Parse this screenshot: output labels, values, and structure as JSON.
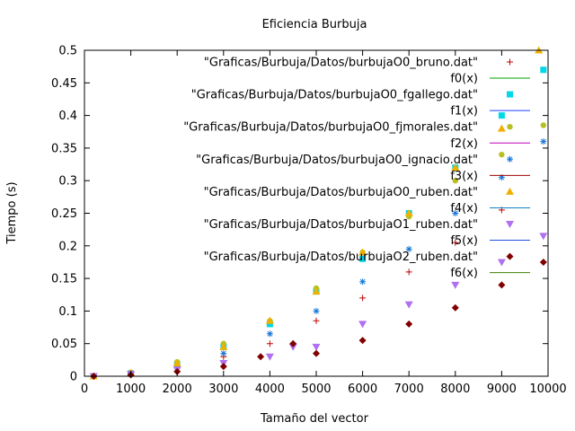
{
  "chart_data": {
    "type": "scatter",
    "title": "Eficiencia Burbuja",
    "xlabel": "Tamaño del vector",
    "ylabel": "Tiempo (s)",
    "xlim": [
      0,
      10000
    ],
    "ylim": [
      0,
      0.5
    ],
    "xticks": [
      "0",
      "1000",
      "2000",
      "3000",
      "4000",
      "5000",
      "6000",
      "7000",
      "8000",
      "9000",
      "10000"
    ],
    "yticks": [
      "0",
      "0.05",
      "0.1",
      "0.15",
      "0.2",
      "0.25",
      "0.3",
      "0.35",
      "0.4",
      "0.45",
      "0.5"
    ],
    "grid": false,
    "legend_position": "top-right",
    "series": [
      {
        "name": "\"Graficas/Burbuja/Datos/burbujaO0_bruno.dat\"",
        "kind": "points",
        "marker": "plus",
        "color": "#c00000",
        "x": [
          200,
          1000,
          2000,
          3000,
          4000,
          5000,
          6000,
          7000,
          8000,
          9000,
          9800
        ],
        "y": [
          0.0,
          0.005,
          0.013,
          0.03,
          0.05,
          0.085,
          0.12,
          0.16,
          0.205,
          0.255,
          0.5
        ]
      },
      {
        "name": "f0(x)",
        "kind": "line",
        "color": "#00a000",
        "x": [],
        "y": []
      },
      {
        "name": "\"Graficas/Burbuja/Datos/burbujaO0_fgallego.dat\"",
        "kind": "points",
        "marker": "square",
        "color": "#00d8e8",
        "x": [
          200,
          1000,
          2000,
          3000,
          4000,
          5000,
          6000,
          7000,
          8000,
          9000,
          9900
        ],
        "y": [
          0.0,
          0.004,
          0.018,
          0.045,
          0.08,
          0.13,
          0.18,
          0.25,
          0.32,
          0.4,
          0.47
        ]
      },
      {
        "name": "f1(x)",
        "kind": "line",
        "color": "#2040ff",
        "x": [],
        "y": []
      },
      {
        "name": "\"Graficas/Burbuja/Datos/burbujaO0_fjmorales.dat\"",
        "kind": "points",
        "marker": "circle",
        "color": "#b8c020",
        "x": [
          200,
          1000,
          2000,
          3000,
          4000,
          5000,
          6000,
          7000,
          8000,
          9000,
          9900
        ],
        "y": [
          0.0,
          0.006,
          0.022,
          0.05,
          0.085,
          0.135,
          0.19,
          0.245,
          0.3,
          0.34,
          0.385
        ]
      },
      {
        "name": "f2(x)",
        "kind": "line",
        "color": "#c000c0",
        "x": [],
        "y": []
      },
      {
        "name": "\"Graficas/Burbuja/Datos/burbujaO0_ignacio.dat\"",
        "kind": "points",
        "marker": "star",
        "color": "#1878d8",
        "x": [
          200,
          1000,
          2000,
          3000,
          4000,
          5000,
          6000,
          7000,
          8000,
          9000,
          9900
        ],
        "y": [
          0.0,
          0.005,
          0.016,
          0.035,
          0.065,
          0.1,
          0.145,
          0.195,
          0.25,
          0.305,
          0.36
        ]
      },
      {
        "name": "f3(x)",
        "kind": "line",
        "color": "#a00000",
        "x": [],
        "y": []
      },
      {
        "name": "\"Graficas/Burbuja/Datos/burbujaO0_ruben.dat\"",
        "kind": "points",
        "marker": "triangle",
        "color": "#f0b000",
        "x": [
          200,
          1000,
          2000,
          3000,
          4000,
          5000,
          6000,
          7000,
          8000,
          9000,
          9800
        ],
        "y": [
          0.0,
          0.005,
          0.02,
          0.045,
          0.085,
          0.13,
          0.19,
          0.25,
          0.32,
          0.38,
          0.5
        ]
      },
      {
        "name": "f4(x)",
        "kind": "line",
        "color": "#1080c0",
        "x": [],
        "y": []
      },
      {
        "name": "\"Graficas/Burbuja/Datos/burbujaO1_ruben.dat\"",
        "kind": "points",
        "marker": "tri-down",
        "color": "#b070f0",
        "x": [
          200,
          1000,
          2000,
          3000,
          4000,
          4500,
          5000,
          6000,
          7000,
          8000,
          9000,
          9900
        ],
        "y": [
          0.0,
          0.003,
          0.01,
          0.02,
          0.03,
          0.045,
          0.045,
          0.08,
          0.11,
          0.14,
          0.175,
          0.215
        ]
      },
      {
        "name": "f5(x)",
        "kind": "line",
        "color": "#2050e0",
        "x": [],
        "y": []
      },
      {
        "name": "\"Graficas/Burbuja/Datos/burbujaO2_ruben.dat\"",
        "kind": "points",
        "marker": "diamond",
        "color": "#800000",
        "x": [
          200,
          1000,
          2000,
          3000,
          3800,
          4500,
          5000,
          6000,
          7000,
          8000,
          9000,
          9900
        ],
        "y": [
          0.0,
          0.002,
          0.007,
          0.015,
          0.03,
          0.05,
          0.035,
          0.055,
          0.08,
          0.105,
          0.14,
          0.175
        ]
      },
      {
        "name": "f6(x)",
        "kind": "line",
        "color": "#408000",
        "x": [],
        "y": []
      }
    ]
  }
}
